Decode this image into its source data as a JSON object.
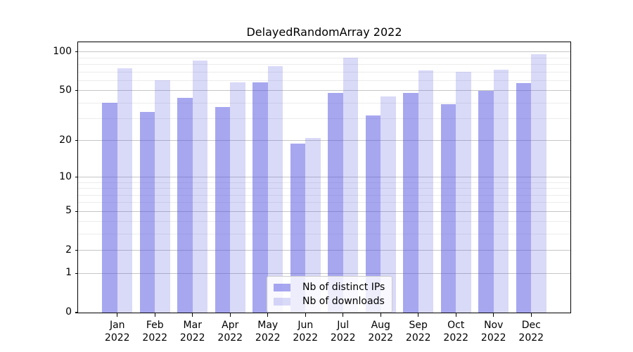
{
  "figure": {
    "background": "#ffffff"
  },
  "chart_data": {
    "type": "bar",
    "title": "DelayedRandomArray 2022",
    "categories": [
      "Jan 2022",
      "Feb 2022",
      "Mar 2022",
      "Apr 2022",
      "May 2022",
      "Jun 2022",
      "Jul 2022",
      "Aug 2022",
      "Sep 2022",
      "Oct 2022",
      "Nov 2022",
      "Dec 2022"
    ],
    "series": [
      {
        "name": "Nb of distinct IPs",
        "slug": "distinct-ips",
        "color": "rgba(80,80,225,0.5)",
        "values": [
          40,
          34,
          44,
          37,
          58,
          19,
          48,
          32,
          48,
          39,
          50,
          57
        ]
      },
      {
        "name": "Nb of downloads",
        "slug": "downloads",
        "color": "rgba(80,80,225,0.22)",
        "values": [
          75,
          60,
          86,
          58,
          78,
          21,
          90,
          45,
          72,
          70,
          73,
          96
        ]
      }
    ],
    "xlabel": "",
    "ylabel": "",
    "yscale": "log1p",
    "ylim": [
      0,
      119
    ],
    "y_major_ticks": [
      0,
      1,
      2,
      5,
      10,
      20,
      50,
      100
    ],
    "y_minor_ticks": [
      3,
      4,
      6,
      7,
      8,
      9,
      30,
      40,
      60,
      70,
      80,
      90
    ],
    "grid": true,
    "grid_color_major": "#c6c6c6",
    "grid_color_minor": "#ececec",
    "legend_position": "lower center"
  }
}
